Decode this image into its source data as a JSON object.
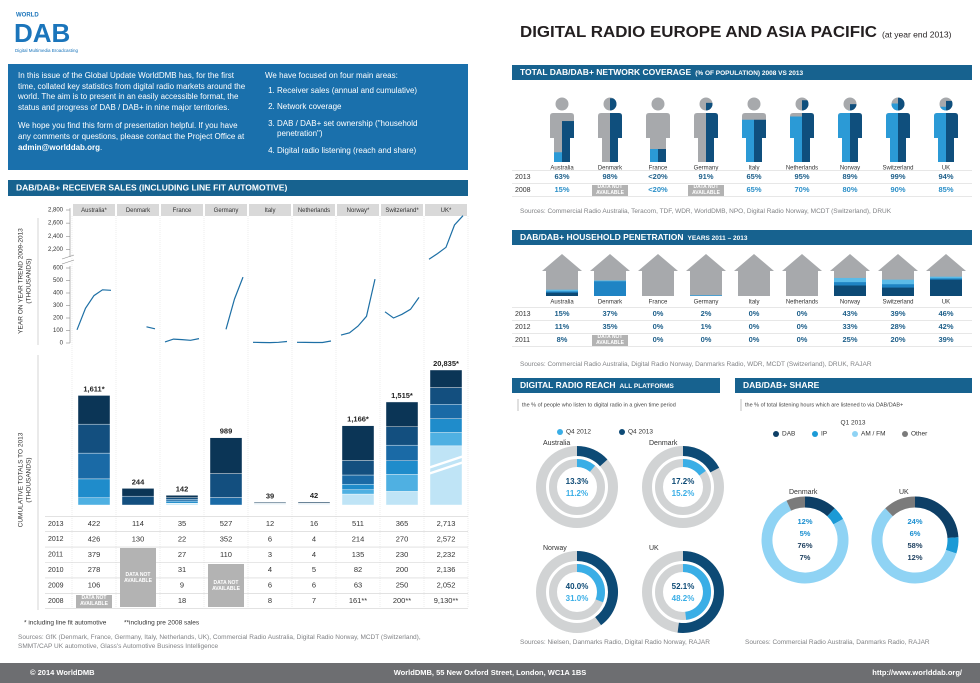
{
  "header": {
    "logo_top": "WORLD",
    "logo": "DAB",
    "logo_sub": "Digital Multimedia Broadcasting",
    "title": "DIGITAL RADIO EUROPE AND ASIA PACIFIC",
    "subtitle": "(at year end 2013)"
  },
  "intro": {
    "paragraphs": [
      "In this issue of the Global Update WorldDMB has, for the first time, collated key statistics from digital radio markets around the world.  The aim is to present in an easily accessible format, the status and progress of DAB / DAB+ in nine major territories.",
      "We hope you find this form of presentation helpful.  If you have any comments or questions, please contact the Project Office at "
    ],
    "email": "admin@worlddab.org",
    "email_end": ".",
    "focus_title": "We have focused on four main areas:",
    "focus_items": [
      "Receiver sales (annual and cumulative)",
      "Network coverage",
      "DAB / DAB+ set ownership (\"household penetration\")",
      "Digital radio listening (reach and share)"
    ]
  },
  "receiver_sales": {
    "title": "DAB/DAB+ RECEIVER SALES (INCLUDING LINE FIT AUTOMOTIVE)",
    "trend_label": [
      "YEAR ON YEAR TREND 2009-2013",
      "(THOUSANDS)"
    ],
    "cumulative_label": [
      "CUMULATIVE TOTALS TO 2013",
      "(THOUSANDS)"
    ],
    "trend_upper_ylim": [
      2100,
      2800
    ],
    "trend_upper_yticks": [
      {
        "value": 2200,
        "label": "2,200"
      },
      {
        "value": 2400,
        "label": "2,400"
      },
      {
        "value": 2600,
        "label": "2,600"
      },
      {
        "value": 2800,
        "label": "2,800"
      }
    ],
    "trend_lower_ylim": [
      0,
      600
    ],
    "trend_lower_yticks": [
      0,
      100,
      200,
      300,
      400,
      500,
      600
    ],
    "years": [
      "2013",
      "2012",
      "2011",
      "2010",
      "2009",
      "2008"
    ],
    "not_available": "DATA NOT AVAILABLE",
    "countries": [
      {
        "name": "Australia*",
        "values": [
          422,
          426,
          379,
          278,
          106,
          null
        ],
        "total": 1611,
        "total_label": "1,611*"
      },
      {
        "name": "Denmark",
        "values": [
          114,
          130,
          null,
          null,
          null,
          null
        ],
        "total": 244
      },
      {
        "name": "France",
        "values": [
          35,
          22,
          27,
          31,
          9,
          18
        ],
        "total": 142
      },
      {
        "name": "Germany",
        "values": [
          527,
          352,
          110,
          null,
          null,
          null
        ],
        "total": 989
      },
      {
        "name": "Italy",
        "values": [
          12,
          6,
          3,
          4,
          6,
          8
        ],
        "total": 39
      },
      {
        "name": "Netherlands",
        "values": [
          16,
          4,
          4,
          5,
          6,
          7
        ],
        "total": 42
      },
      {
        "name": "Norway*",
        "values": [
          511,
          214,
          135,
          82,
          63,
          161
        ],
        "value_labels": [
          "511",
          "214",
          "135",
          "82",
          "63",
          "161**"
        ],
        "total": 1166,
        "total_label": "1,166*"
      },
      {
        "name": "Switzerland*",
        "values": [
          365,
          270,
          230,
          200,
          250,
          200
        ],
        "value_labels": [
          "365",
          "270",
          "230",
          "200",
          "250",
          "200**"
        ],
        "total": 1515,
        "total_label": "1,515*"
      },
      {
        "name": "UK*",
        "values": [
          2713,
          2572,
          2232,
          2136,
          2052,
          9130
        ],
        "value_labels": [
          "2,713",
          "2,572",
          "2,232",
          "2,136",
          "2,052",
          "9,130**"
        ],
        "total": 20835,
        "total_label": "20,835*"
      }
    ],
    "notes": [
      "* including line fit automotive",
      "**including pre 2008 sales"
    ],
    "sources": "Sources:  GfK (Denmark, France, Germany, Italy, Netherlands, UK), Commercial Radio Australia, Digital Radio Norway, MCDT (Switzerland), SMMT/CAP UK automotive, Glass's Automotive Business Intelligence"
  },
  "coverage": {
    "title": "TOTAL DAB/DAB+ NETWORK COVERAGE",
    "title_small": "(% OF POPULATION) 2008 VS 2013",
    "countries": [
      "Australia",
      "Denmark",
      "France",
      "Germany",
      "Italy",
      "Netherlands",
      "Norway",
      "Switzerland",
      "UK"
    ],
    "series": [
      {
        "name": "2013",
        "color": "#0f4f7d",
        "values": [
          63,
          98,
          20,
          91,
          65,
          95,
          89,
          99,
          94
        ],
        "value_labels": [
          "63%",
          "98%",
          "<20%",
          "91%",
          "65%",
          "95%",
          "89%",
          "99%",
          "94%"
        ]
      },
      {
        "name": "2008",
        "color": "#2b9ad6",
        "values": [
          15,
          null,
          20,
          null,
          65,
          70,
          80,
          90,
          85
        ],
        "value_labels": [
          "15%",
          null,
          "<20%",
          null,
          "65%",
          "70%",
          "80%",
          "90%",
          "85%"
        ]
      }
    ],
    "not_available": "DATA NOT AVAILABLE",
    "sources": "Sources: Commercial Radio Australia, Teracom, TDF, WDR, WorldDMB, NPO, Digital Radio Norway, MCDT (Switzerland), DRUK"
  },
  "household": {
    "title": "DAB/DAB+ HOUSEHOLD PENETRATION",
    "title_small": "YEARS 2011 – 2013",
    "countries": [
      "Australia",
      "Denmark",
      "France",
      "Germany",
      "Italy",
      "Netherlands",
      "Norway",
      "Switzerland",
      "UK"
    ],
    "series": [
      {
        "name": "2013",
        "color": "#5bbbe8",
        "values": [
          15,
          37,
          0,
          2,
          0,
          0,
          43,
          39,
          46
        ],
        "value_labels": [
          "15%",
          "37%",
          "0%",
          "2%",
          "0%",
          "0%",
          "43%",
          "39%",
          "46%"
        ]
      },
      {
        "name": "2012",
        "color": "#1f84c4",
        "values": [
          11,
          35,
          0,
          1,
          0,
          0,
          33,
          28,
          42
        ],
        "value_labels": [
          "11%",
          "35%",
          "0%",
          "1%",
          "0%",
          "0%",
          "33%",
          "28%",
          "42%"
        ]
      },
      {
        "name": "2011",
        "color": "#0d4a75",
        "values": [
          8,
          null,
          0,
          0,
          0,
          0,
          25,
          20,
          39
        ],
        "value_labels": [
          "8%",
          null,
          "0%",
          "0%",
          "0%",
          "0%",
          "25%",
          "20%",
          "39%"
        ]
      }
    ],
    "not_available": "DATA NOT AVAILABLE",
    "sources": "Sources: Commercial Radio Australia, Digital Radio Norway, Danmarks Radio, WDR, MCDT (Switzerland), DRUK, RAJAR"
  },
  "reach": {
    "title": "DIGITAL RADIO REACH",
    "title_small": "ALL PLATFORMS",
    "description": "the % of people who listen to digital radio in a given time period",
    "categories": [
      "Australia",
      "Denmark",
      "Norway",
      "UK"
    ],
    "series": [
      {
        "name": "Q4 2012",
        "color": "#3aaee6",
        "values": [
          11.2,
          15.2,
          31.0,
          48.2
        ],
        "value_labels": [
          "11.2%",
          "15.2%",
          "31.0%",
          "48.2%"
        ]
      },
      {
        "name": "Q4 2013",
        "color": "#0d4a75",
        "values": [
          13.3,
          17.2,
          40.0,
          52.1
        ],
        "value_labels": [
          "13.3%",
          "17.2%",
          "40.0%",
          "52.1%"
        ]
      }
    ],
    "sources": "Sources: Nielsen, Danmarks Radio, Digital Radio Norway, RAJAR"
  },
  "share": {
    "title": "DAB/DAB+ SHARE",
    "description": "the % of total listening hours which are listened to via DAB/DAB+",
    "legend_title": "Q1 2013",
    "categories": [
      "Denmark",
      "UK"
    ],
    "segments": [
      {
        "name": "DAB",
        "color": "#0d3f66",
        "values": [
          12,
          24
        ],
        "value_labels": [
          "12%",
          "24%"
        ]
      },
      {
        "name": "IP",
        "color": "#1b9ad6",
        "values": [
          5,
          6
        ],
        "value_labels": [
          "5%",
          "6%"
        ]
      },
      {
        "name": "AM / FM",
        "color": "#8fd3f4",
        "values": [
          76,
          58
        ],
        "value_labels": [
          "76%",
          "58%"
        ]
      },
      {
        "name": "Other",
        "color": "#7b7b7b",
        "values": [
          7,
          12
        ],
        "value_labels": [
          "7%",
          "12%"
        ]
      }
    ],
    "sources": "Sources: Commercial Radio Australia, Danmarks Radio, RAJAR"
  },
  "footer": {
    "left": "© 2014 WorldDMB",
    "center": "WorldDMB, 55 New Oxford Street, London, WC1A 1BS",
    "right": "http://www.worlddab.org/"
  }
}
